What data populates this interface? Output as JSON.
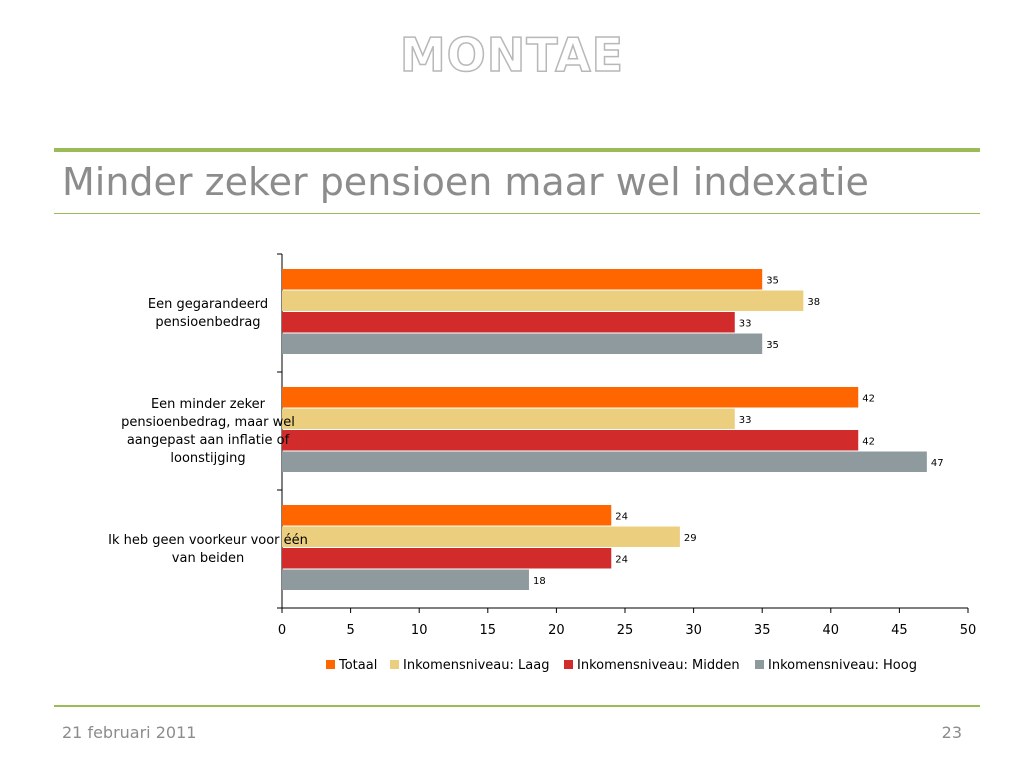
{
  "header": {
    "logo_text": "MONTAE",
    "slide_title": "Minder zeker pensioen maar wel indexatie"
  },
  "footer": {
    "date": "21 februari 2011",
    "page_number": "23"
  },
  "chart_data": {
    "type": "bar",
    "orientation": "horizontal",
    "title": "",
    "xlabel": "",
    "ylabel": "",
    "xlim": [
      0,
      50
    ],
    "x_ticks": [
      0,
      5,
      10,
      15,
      20,
      25,
      30,
      35,
      40,
      45,
      50
    ],
    "grid": false,
    "legend_position": "bottom",
    "categories": [
      [
        "Een gegarandeerd",
        "pensioenbedrag"
      ],
      [
        "Een minder zeker",
        "pensioenbedrag, maar wel",
        "aangepast aan inflatie of",
        "loonstijging"
      ],
      [
        "Ik heb geen voorkeur voor één",
        "van beiden"
      ]
    ],
    "series": [
      {
        "name": "Totaal",
        "color": "#ff6600",
        "values": [
          35,
          42,
          24
        ],
        "value_labels": [
          "35",
          "42",
          "24"
        ]
      },
      {
        "name": "Inkomensniveau: Laag",
        "color": "#ebcf7f",
        "values": [
          38,
          33,
          29
        ],
        "value_labels": [
          "38",
          "33",
          "29"
        ]
      },
      {
        "name": "Inkomensniveau: Midden",
        "color": "#d22b2b",
        "values": [
          33,
          42,
          24
        ],
        "value_labels": [
          "33",
          "42",
          "24"
        ]
      },
      {
        "name": "Inkomensniveau: Hoog",
        "color": "#8f9a9e",
        "values": [
          35,
          47,
          18
        ],
        "value_labels": [
          "35",
          "47",
          "18"
        ]
      }
    ]
  }
}
